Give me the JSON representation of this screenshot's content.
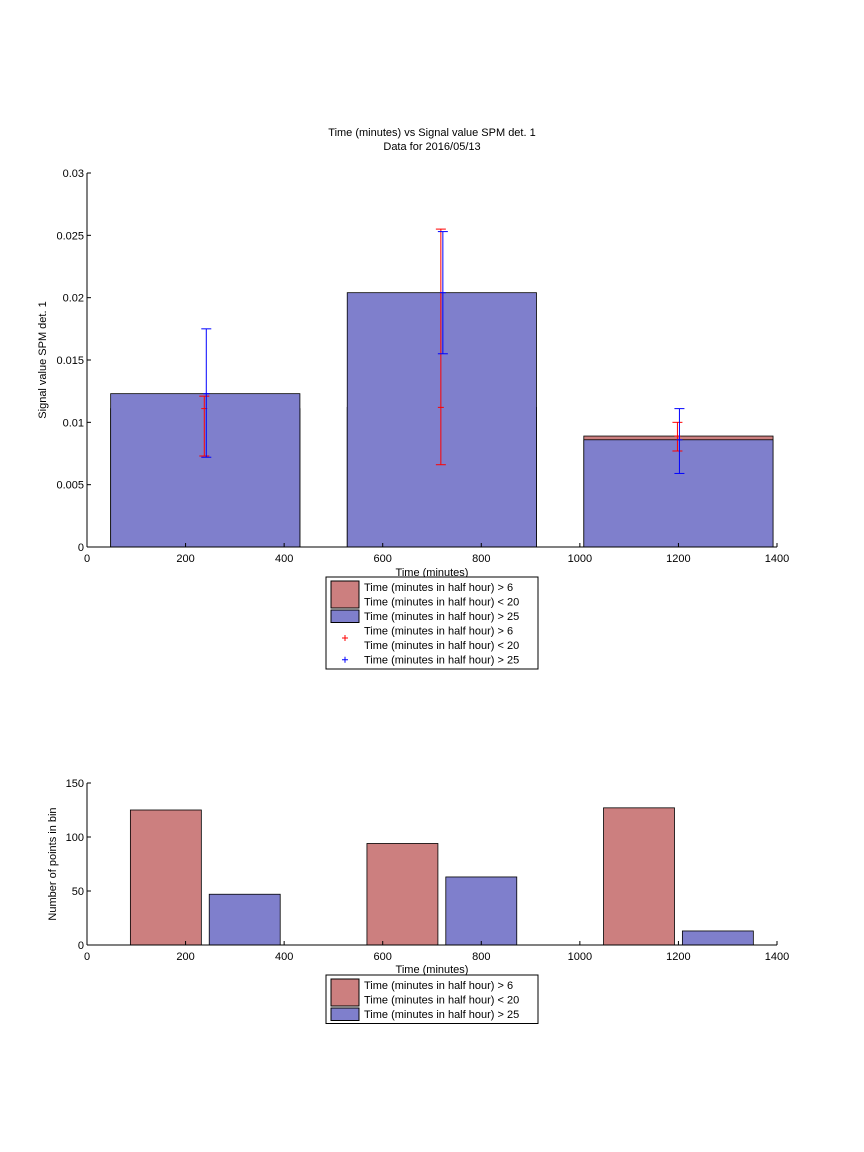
{
  "chart_data": [
    {
      "type": "bar",
      "title": "Time (minutes) vs Signal value SPM det. 1",
      "subtitle": "Data for 2016/05/13",
      "xlabel": "Time (minutes)",
      "ylabel": "Signal value SPM det. 1",
      "xlim": [
        0,
        1400
      ],
      "ylim": [
        0,
        0.03
      ],
      "xticks": [
        "0",
        "200",
        "400",
        "600",
        "800",
        "1000",
        "1200",
        "1400"
      ],
      "yticks": [
        "0",
        "0.005",
        "0.01",
        "0.015",
        "0.02",
        "0.025",
        "0.03"
      ],
      "grid": false,
      "legend_position": "bottom-outside",
      "x": [
        240,
        720,
        1200
      ],
      "series": [
        {
          "name": "Time (minutes in half hour) > 6\nTime (minutes in half hour) < 20",
          "color": "#cc7f7f",
          "values": [
            0.0111,
            0.0112,
            0.0089
          ],
          "error_low": [
            0.0073,
            0.0066,
            0.0077
          ],
          "error_high": [
            0.0121,
            0.0255,
            0.01
          ],
          "error_color": "#ff0000"
        },
        {
          "name": "Time (minutes in half hour) > 25",
          "color": "#7f7fcc",
          "values": [
            0.0123,
            0.0204,
            0.0086
          ],
          "error_low": [
            0.0072,
            0.0155,
            0.0059
          ],
          "error_high": [
            0.0175,
            0.0253,
            0.0111
          ],
          "error_color": "#0000ff"
        }
      ],
      "legend": [
        {
          "kind": "patch",
          "color": "#cc7f7f",
          "lines": [
            "Time (minutes in half hour) > 6",
            "Time (minutes in half hour) < 20"
          ]
        },
        {
          "kind": "patch",
          "color": "#7f7fcc",
          "lines": [
            "Time (minutes in half hour) > 25"
          ]
        },
        {
          "kind": "marker",
          "color": "#ff0000",
          "lines": [
            "Time (minutes in half hour) > 6",
            "Time (minutes in half hour) < 20"
          ]
        },
        {
          "kind": "marker",
          "color": "#0000ff",
          "lines": [
            "Time (minutes in half hour) > 25"
          ]
        }
      ]
    },
    {
      "type": "bar",
      "xlabel": "Time (minutes)",
      "ylabel": "Number of points in bin",
      "xlim": [
        0,
        1400
      ],
      "ylim": [
        0,
        150
      ],
      "xticks": [
        "0",
        "200",
        "400",
        "600",
        "800",
        "1000",
        "1200",
        "1400"
      ],
      "yticks": [
        "0",
        "50",
        "100",
        "150"
      ],
      "grid": false,
      "legend_position": "bottom-outside",
      "x": [
        240,
        720,
        1200
      ],
      "series": [
        {
          "name": "Time (minutes in half hour) > 6\nTime (minutes in half hour) < 20",
          "color": "#cc7f7f",
          "values": [
            125,
            94,
            127
          ]
        },
        {
          "name": "Time (minutes in half hour) > 25",
          "color": "#7f7fcc",
          "values": [
            47,
            63,
            13
          ]
        }
      ],
      "legend": [
        {
          "kind": "patch",
          "color": "#cc7f7f",
          "lines": [
            "Time (minutes in half hour) > 6",
            "Time (minutes in half hour) < 20"
          ]
        },
        {
          "kind": "patch",
          "color": "#7f7fcc",
          "lines": [
            "Time (minutes in half hour) > 25"
          ]
        }
      ]
    }
  ]
}
